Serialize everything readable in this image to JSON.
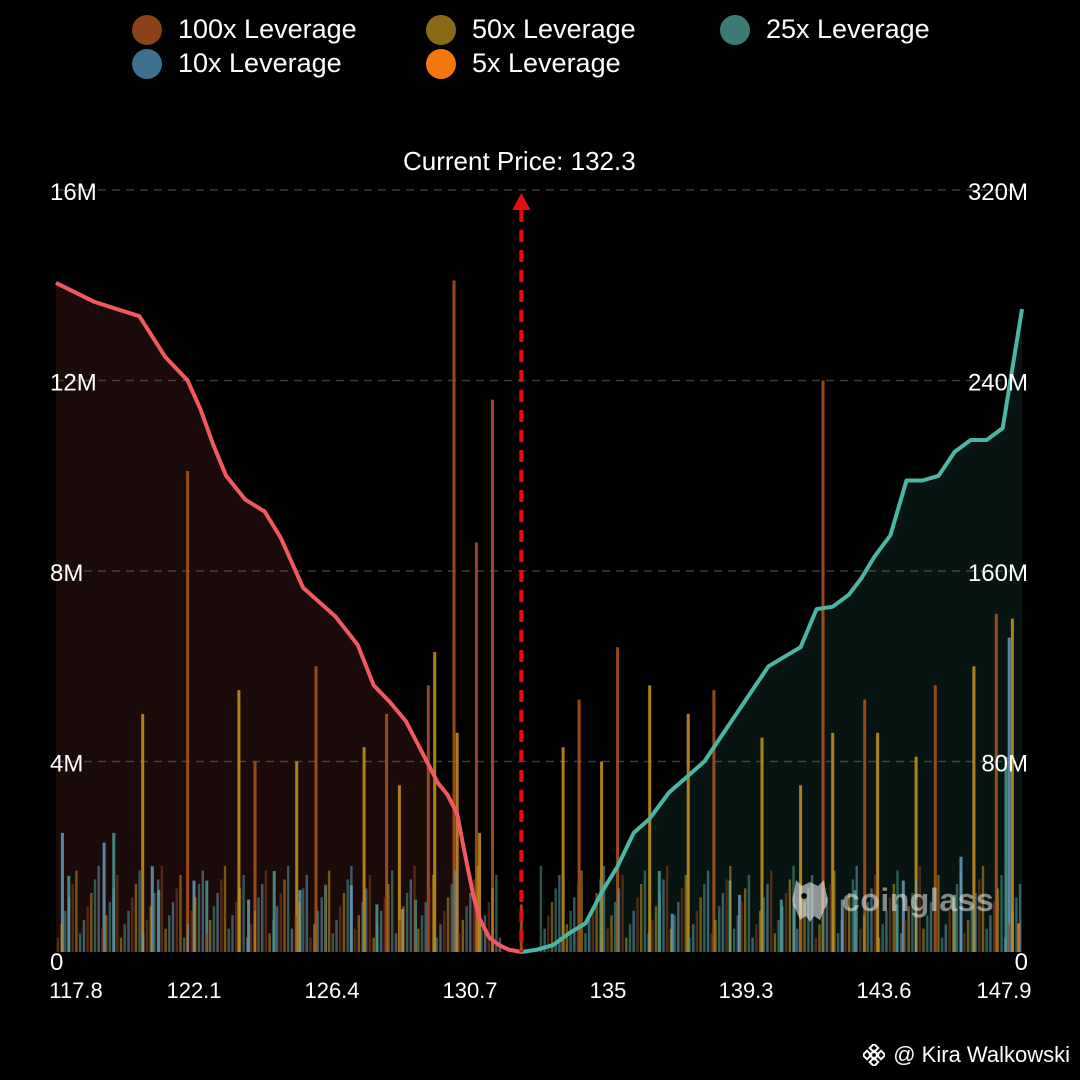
{
  "legend": [
    {
      "label": "100x Leverage",
      "color": "#8a4216"
    },
    {
      "label": "50x Leverage",
      "color": "#8a6a16"
    },
    {
      "label": "25x Leverage",
      "color": "#3c7b74"
    },
    {
      "label": "10x Leverage",
      "color": "#3f6f8f"
    },
    {
      "label": "5x Leverage",
      "color": "#f5780f"
    }
  ],
  "watermark": {
    "author": "@ Kira Walkowski",
    "icon": "binance-icon"
  },
  "brand": {
    "logo_text": "coinglass",
    "icon": "coinglass-icon"
  },
  "chart_data": {
    "type": "bar",
    "annotation": {
      "label": "Current Price: 132.3",
      "x": 132.3,
      "color": "#e01010"
    },
    "x_axis": {
      "range": [
        117.8,
        147.9
      ],
      "ticks": [
        "117.8",
        "122.1",
        "126.4",
        "130.7",
        "135",
        "139.3",
        "143.6",
        "147.9"
      ]
    },
    "y_left": {
      "range": [
        0,
        16
      ],
      "unit": "M",
      "ticks": [
        "0",
        "4M",
        "8M",
        "12M",
        "16M"
      ]
    },
    "y_right": {
      "range": [
        0,
        320
      ],
      "unit": "M",
      "ticks": [
        "0",
        "80M",
        "160M",
        "240M",
        "320M"
      ]
    },
    "grid": true,
    "legend_position": "top",
    "cumulative_long": {
      "axis": "right",
      "color": "#f05a5f",
      "x": [
        117.8,
        118.4,
        119.0,
        119.7,
        120.4,
        121.2,
        121.9,
        122.3,
        122.7,
        123.1,
        123.7,
        124.3,
        124.8,
        125.5,
        126.0,
        126.5,
        127.2,
        127.7,
        128.2,
        128.7,
        129.2,
        129.7,
        130.0,
        130.3,
        130.5,
        130.8,
        131.0,
        131.3,
        131.6,
        131.9,
        132.3
      ],
      "values": [
        281,
        277,
        273,
        270,
        267,
        250,
        240,
        228,
        213,
        200,
        190,
        185,
        174,
        153,
        147,
        141,
        129,
        112,
        105,
        97,
        84,
        71,
        66,
        58,
        44,
        24,
        14,
        6,
        3,
        1,
        0
      ]
    },
    "cumulative_short": {
      "axis": "right",
      "color": "#4cb5a3",
      "x": [
        132.3,
        132.8,
        133.3,
        133.8,
        134.3,
        134.8,
        135.3,
        135.8,
        136.3,
        136.9,
        137.5,
        138.0,
        138.5,
        139.0,
        139.5,
        140.0,
        140.5,
        141.0,
        141.5,
        142.0,
        142.5,
        142.9,
        143.3,
        143.8,
        144.3,
        144.8,
        145.3,
        145.8,
        146.3,
        146.8,
        147.3,
        147.9
      ],
      "values": [
        0,
        1,
        3,
        8,
        12,
        25,
        36,
        50,
        56,
        67,
        74,
        80,
        90,
        100,
        110,
        120,
        124,
        128,
        144,
        145,
        150,
        157,
        166,
        175,
        198,
        198,
        200,
        210,
        215,
        215,
        220,
        270
      ]
    },
    "bars_left_axis_approx": {
      "100x": {
        "x": [
          121.9,
          124.0,
          125.9,
          128.1,
          129.4,
          130.2,
          130.9,
          131.4,
          132.3,
          134.1,
          135.3,
          138.3,
          141.7,
          143.0,
          145.2,
          147.1
        ],
        "values": [
          10.1,
          4.0,
          6.0,
          5.0,
          5.6,
          14.1,
          8.6,
          11.6,
          1.0,
          5.3,
          6.4,
          5.5,
          12.0,
          5.3,
          5.6,
          7.1
        ]
      },
      "50x": {
        "x": [
          120.5,
          123.5,
          125.3,
          127.4,
          128.5,
          129.6,
          130.3,
          131.0,
          133.6,
          134.8,
          136.3,
          137.5,
          139.8,
          141.0,
          142.0,
          143.4,
          144.6,
          146.4,
          147.6
        ],
        "values": [
          5.0,
          5.5,
          4.0,
          4.3,
          3.5,
          6.3,
          4.6,
          2.5,
          4.3,
          4.0,
          5.6,
          5.0,
          4.5,
          3.5,
          4.6,
          4.6,
          4.1,
          6.0,
          7.0
        ]
      },
      "25x": {
        "x": [
          118.2,
          119.6,
          121.0,
          122.5,
          124.6,
          126.2,
          127.8,
          129.0,
          136.6,
          138.8,
          140.4,
          142.7,
          144.0,
          145.8,
          147.4
        ],
        "values": [
          1.6,
          2.5,
          1.3,
          1.5,
          1.7,
          1.4,
          1.0,
          1.1,
          1.7,
          1.5,
          1.1,
          1.3,
          1.0,
          1.2,
          4.1
        ]
      },
      "10x": {
        "x": [
          118.0,
          119.3,
          120.8,
          122.1,
          123.8,
          125.4,
          127.0,
          128.6,
          137.0,
          139.1,
          140.8,
          142.3,
          144.2,
          146.0,
          147.5
        ],
        "values": [
          2.5,
          2.3,
          1.8,
          1.5,
          1.1,
          1.3,
          1.4,
          0.9,
          0.8,
          1.2,
          1.0,
          1.1,
          1.5,
          2.0,
          6.6
        ]
      },
      "5x": {
        "x": [
          147.8
        ],
        "values": [
          0.6
        ]
      }
    }
  }
}
